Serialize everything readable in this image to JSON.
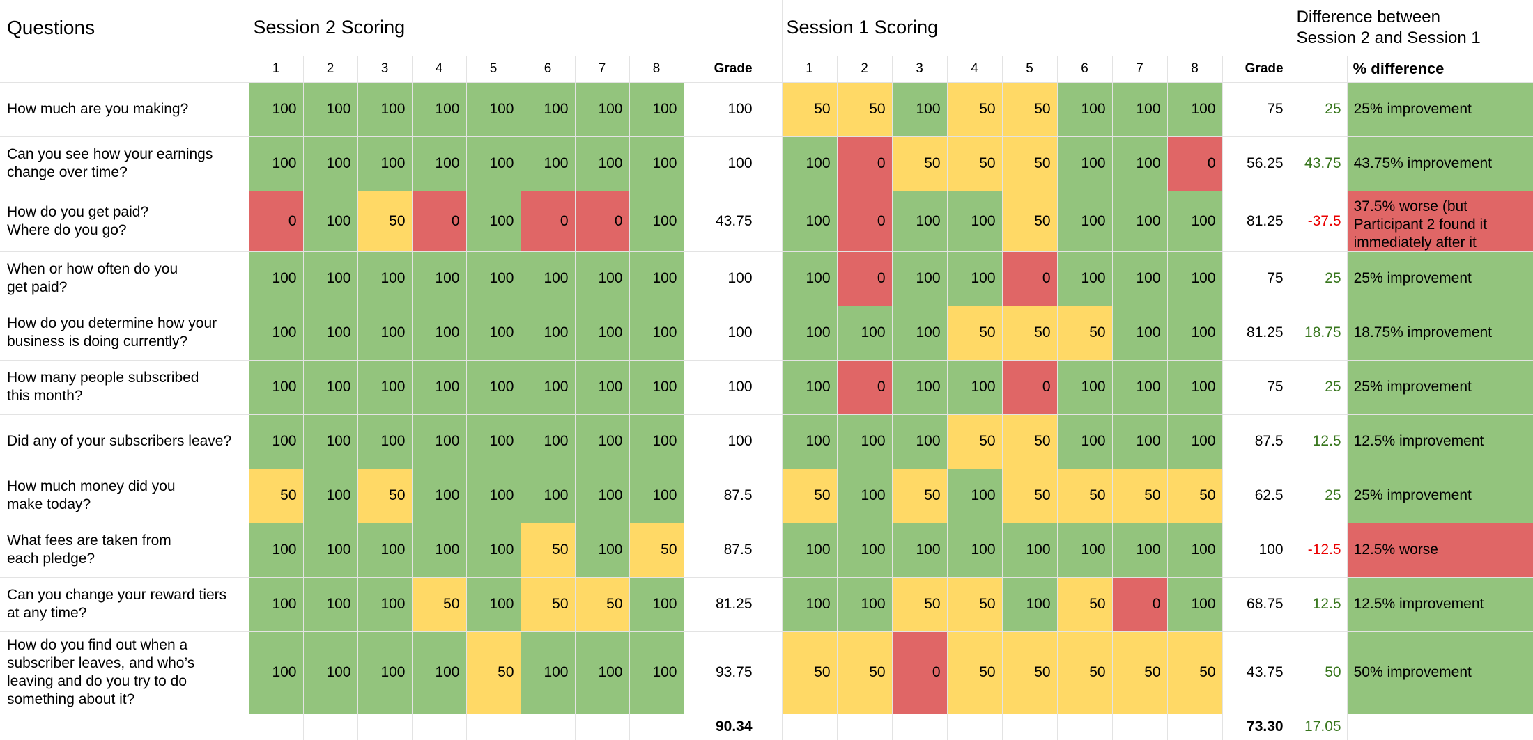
{
  "header": {
    "questions_title": "Questions",
    "session2_title": "Session 2 Scoring",
    "session1_title": "Session 1 Scoring",
    "difference_title": "Difference between\nSession 2 and Session 1",
    "participant_columns": [
      "1",
      "2",
      "3",
      "4",
      "5",
      "6",
      "7",
      "8"
    ],
    "grade_label": "Grade",
    "pct_difference_label": "% difference"
  },
  "colors": {
    "score_green_bg": "#93c47d",
    "score_yellow_bg": "#ffd966",
    "score_red_bg": "#e06666",
    "positive_diff_text": "#38761d",
    "negative_diff_text": "#ea0000",
    "gridline": "#e3e3e3"
  },
  "rows": [
    {
      "question": "How much are you making?",
      "s2": [
        100,
        100,
        100,
        100,
        100,
        100,
        100,
        100
      ],
      "s2_grade": "100",
      "s1": [
        50,
        50,
        100,
        50,
        50,
        100,
        100,
        100
      ],
      "s1_grade": "75",
      "diff": "25",
      "pct": "25% improvement",
      "pct_type": "improvement",
      "pct_clipped": false
    },
    {
      "question": "Can you see how your earnings\nchange over time?",
      "s2": [
        100,
        100,
        100,
        100,
        100,
        100,
        100,
        100
      ],
      "s2_grade": "100",
      "s1": [
        100,
        0,
        50,
        50,
        50,
        100,
        100,
        0
      ],
      "s1_grade": "56.25",
      "diff": "43.75",
      "pct": "43.75% improvement",
      "pct_type": "improvement",
      "pct_clipped": false
    },
    {
      "question": "How do you get paid?\nWhere do you go?",
      "s2": [
        0,
        100,
        50,
        0,
        100,
        0,
        0,
        100
      ],
      "s2_grade": "43.75",
      "s1": [
        100,
        0,
        100,
        100,
        50,
        100,
        100,
        100
      ],
      "s1_grade": "81.25",
      "diff": "-37.5",
      "pct": "37.5% worse (but Participant 2 found it immediately after it",
      "pct_type": "worse",
      "pct_clipped": true
    },
    {
      "question": "When or how often do you\nget paid?",
      "s2": [
        100,
        100,
        100,
        100,
        100,
        100,
        100,
        100
      ],
      "s2_grade": "100",
      "s1": [
        100,
        0,
        100,
        100,
        0,
        100,
        100,
        100
      ],
      "s1_grade": "75",
      "diff": "25",
      "pct": "25% improvement",
      "pct_type": "improvement",
      "pct_clipped": false
    },
    {
      "question": "How do you determine how your\nbusiness is doing currently?",
      "s2": [
        100,
        100,
        100,
        100,
        100,
        100,
        100,
        100
      ],
      "s2_grade": "100",
      "s1": [
        100,
        100,
        100,
        50,
        50,
        50,
        100,
        100
      ],
      "s1_grade": "81.25",
      "diff": "18.75",
      "pct": "18.75% improvement",
      "pct_type": "improvement",
      "pct_clipped": false
    },
    {
      "question": "How many people subscribed\nthis month?",
      "s2": [
        100,
        100,
        100,
        100,
        100,
        100,
        100,
        100
      ],
      "s2_grade": "100",
      "s1": [
        100,
        0,
        100,
        100,
        0,
        100,
        100,
        100
      ],
      "s1_grade": "75",
      "diff": "25",
      "pct": "25% improvement",
      "pct_type": "improvement",
      "pct_clipped": false
    },
    {
      "question": "Did any of your subscribers leave?",
      "s2": [
        100,
        100,
        100,
        100,
        100,
        100,
        100,
        100
      ],
      "s2_grade": "100",
      "s1": [
        100,
        100,
        100,
        50,
        50,
        100,
        100,
        100
      ],
      "s1_grade": "87.5",
      "diff": "12.5",
      "pct": "12.5% improvement",
      "pct_type": "improvement",
      "pct_clipped": false
    },
    {
      "question": "How much money did you\nmake today?",
      "s2": [
        50,
        100,
        50,
        100,
        100,
        100,
        100,
        100
      ],
      "s2_grade": "87.5",
      "s1": [
        50,
        100,
        50,
        100,
        50,
        50,
        50,
        50
      ],
      "s1_grade": "62.5",
      "diff": "25",
      "pct": "25% improvement",
      "pct_type": "improvement",
      "pct_clipped": false
    },
    {
      "question": "What fees are taken from\neach pledge?",
      "s2": [
        100,
        100,
        100,
        100,
        100,
        50,
        100,
        50
      ],
      "s2_grade": "87.5",
      "s1": [
        100,
        100,
        100,
        100,
        100,
        100,
        100,
        100
      ],
      "s1_grade": "100",
      "diff": "-12.5",
      "pct": "12.5% worse",
      "pct_type": "worse",
      "pct_clipped": false
    },
    {
      "question": "Can you change your reward tiers\nat any time?",
      "s2": [
        100,
        100,
        100,
        50,
        100,
        50,
        50,
        100
      ],
      "s2_grade": "81.25",
      "s1": [
        100,
        100,
        50,
        50,
        100,
        50,
        0,
        100
      ],
      "s1_grade": "68.75",
      "diff": "12.5",
      "pct": "12.5% improvement",
      "pct_type": "improvement",
      "pct_clipped": false
    },
    {
      "question": "How do you find out when a\nsubscriber leaves, and who’s\nleaving and do you try to do\nsomething about it?",
      "s2": [
        100,
        100,
        100,
        100,
        50,
        100,
        100,
        100
      ],
      "s2_grade": "93.75",
      "s1": [
        50,
        50,
        0,
        50,
        50,
        50,
        50,
        50
      ],
      "s1_grade": "43.75",
      "diff": "50",
      "pct": "50% improvement",
      "pct_type": "improvement",
      "pct_clipped": false,
      "tall": true
    }
  ],
  "totals": {
    "s2_average": "90.34",
    "s1_average": "73.30",
    "diff_average": "17.05"
  }
}
